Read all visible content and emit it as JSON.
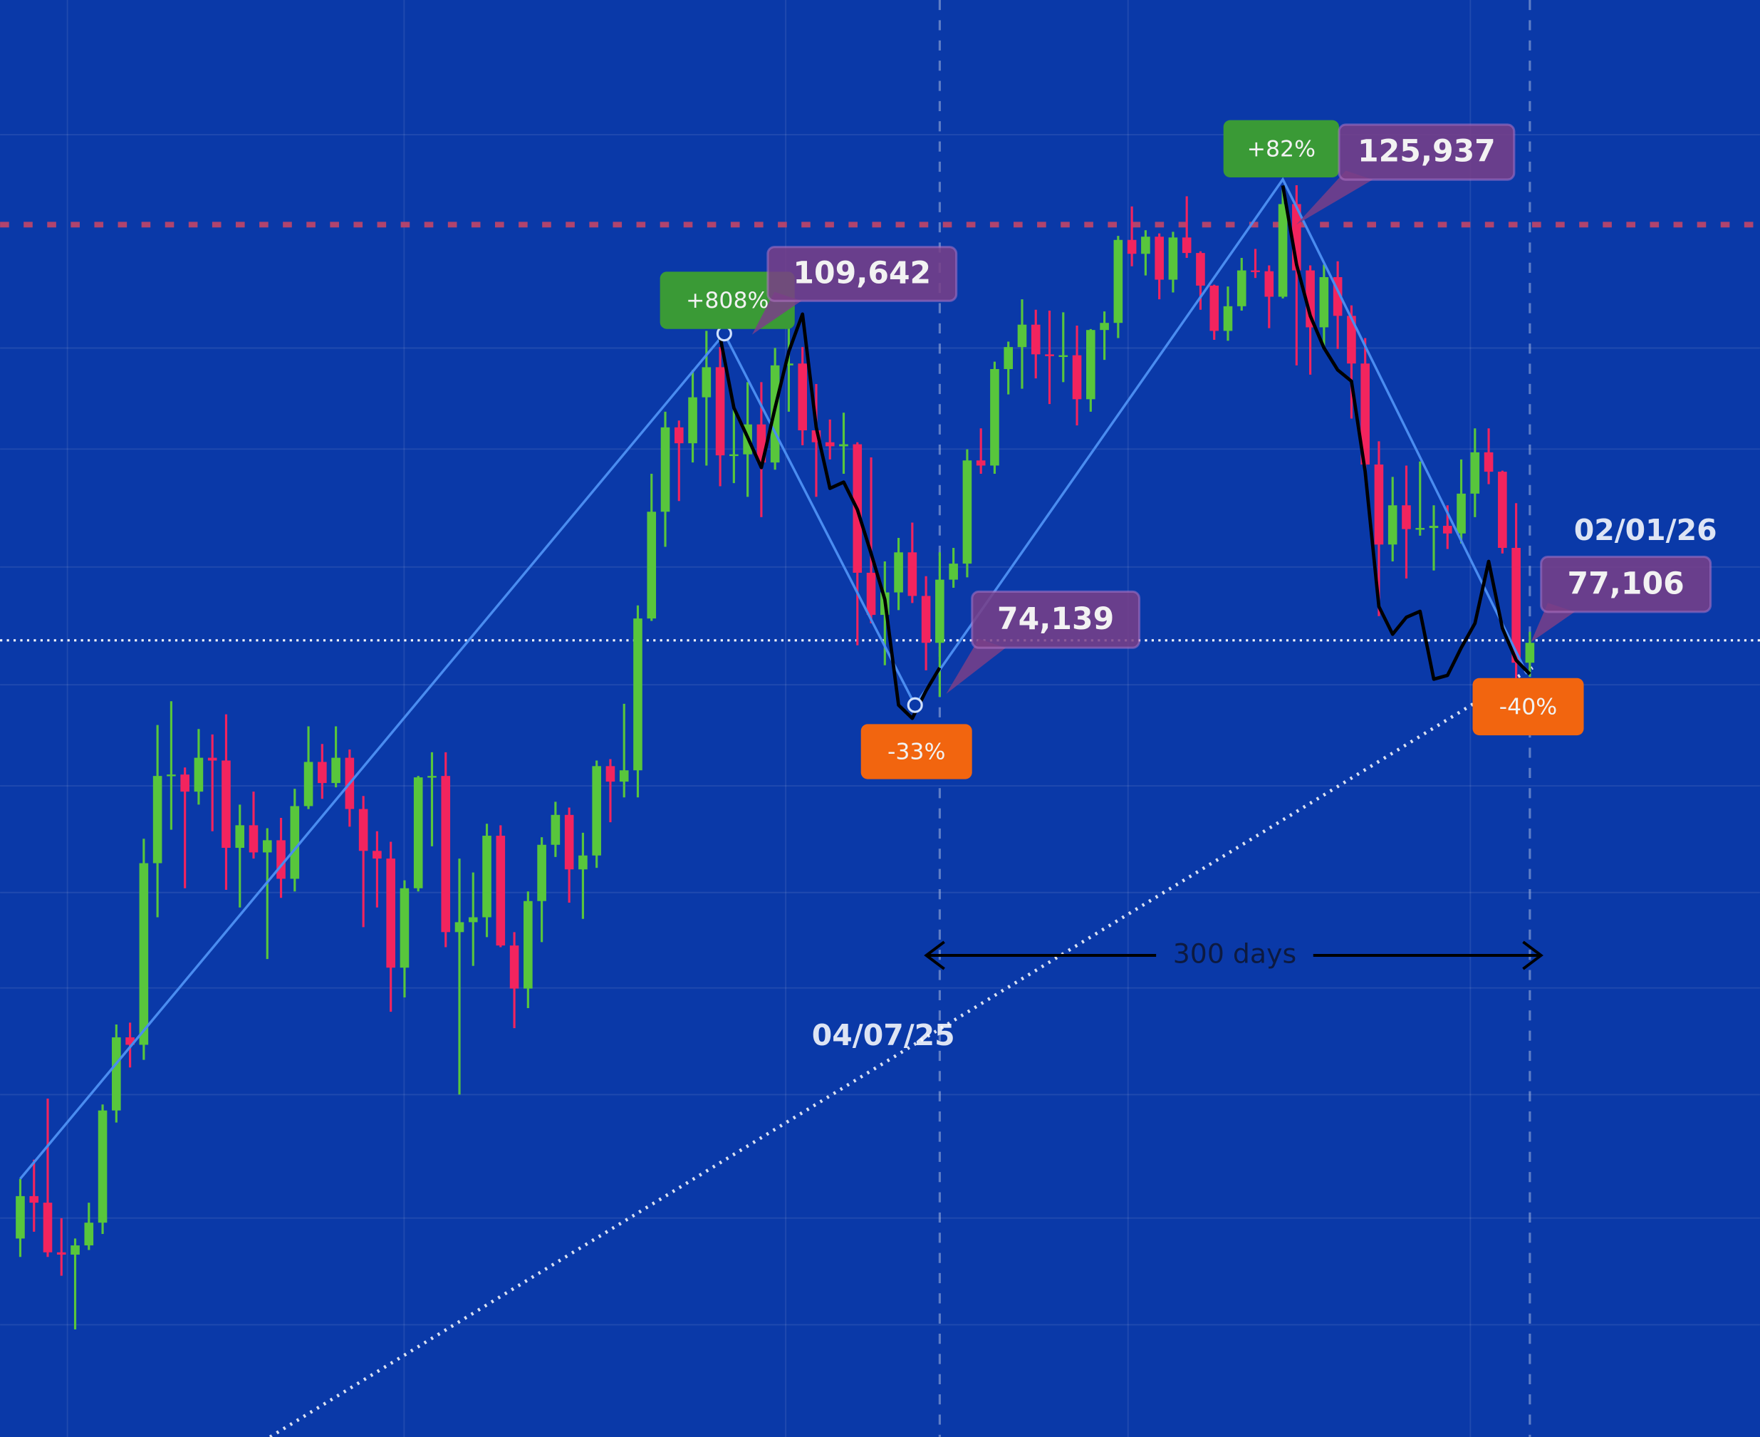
{
  "chart_data": {
    "type": "candlestick",
    "categories": [
      null,
      null,
      null,
      null,
      null,
      null,
      null,
      null,
      null,
      null,
      null,
      null,
      null,
      null,
      null,
      null,
      null,
      null,
      null,
      null,
      null,
      null,
      null,
      null,
      null,
      null,
      null,
      null,
      null,
      null,
      null,
      null,
      null,
      null,
      null,
      null,
      null,
      null,
      null,
      null,
      null,
      null,
      null,
      null,
      null,
      null,
      null,
      null,
      null,
      null,
      null,
      null,
      null,
      null,
      null,
      null,
      null,
      null,
      null,
      null,
      null,
      null,
      null,
      null,
      null,
      null,
      null,
      "04/07/25",
      null,
      null,
      null,
      null,
      null,
      null,
      null,
      null,
      null,
      null,
      null,
      null,
      null,
      null,
      null,
      null,
      null,
      null,
      null,
      null,
      null,
      null,
      null,
      null,
      null,
      null,
      null,
      null,
      null,
      null,
      null,
      null,
      null,
      null,
      null,
      null,
      null,
      null,
      null,
      null,
      null,
      null,
      "02/01/26"
    ],
    "open": [
      42300,
      44200,
      43900,
      41700,
      41600,
      42000,
      43000,
      48300,
      52100,
      51700,
      62400,
      68300,
      68400,
      67200,
      69600,
      69400,
      63400,
      64900,
      63100,
      63900,
      61400,
      66200,
      69300,
      67800,
      69600,
      66000,
      63200,
      62700,
      56000,
      60800,
      68200,
      68300,
      58100,
      58700,
      59000,
      64200,
      57300,
      54800,
      60000,
      63600,
      65600,
      62000,
      62900,
      69000,
      67900,
      68700,
      80400,
      89800,
      98000,
      96400,
      101100,
      104300,
      95200,
      95300,
      98300,
      94500,
      104500,
      104700,
      97700,
      96500,
      96100,
      96300,
      84300,
      80700,
      82600,
      86100,
      82300,
      78400,
      83700,
      85100,
      94700,
      94200,
      104100,
      106500,
      109000,
      105700,
      105500,
      105600,
      100900,
      108400,
      109200,
      119000,
      117300,
      119400,
      114200,
      119300,
      117400,
      113500,
      108300,
      111100,
      115300,
      115200,
      112200,
      123500,
      115300,
      108700,
      114500,
      110000,
      104700,
      94300,
      86800,
      90400,
      88200,
      88300,
      88500,
      87800,
      91500,
      95500,
      93600,
      86500,
      76800
    ],
    "high": [
      45000,
      45900,
      48900,
      43200,
      42300,
      43900,
      48600,
      52800,
      52900,
      64000,
      72000,
      73800,
      68900,
      71700,
      71300,
      72800,
      66300,
      67200,
      64700,
      65400,
      67400,
      71900,
      70600,
      71900,
      70200,
      66900,
      64500,
      63800,
      61300,
      68300,
      70000,
      70000,
      62700,
      61800,
      65000,
      64900,
      58100,
      60600,
      64100,
      66500,
      66100,
      64400,
      69400,
      69500,
      73600,
      81500,
      93400,
      99600,
      98700,
      104000,
      108300,
      106500,
      99900,
      102700,
      102700,
      106400,
      109642,
      106500,
      102500,
      98800,
      99500,
      96500,
      95000,
      85300,
      87400,
      88800,
      84000,
      86100,
      86500,
      95800,
      97900,
      104900,
      107100,
      111900,
      110700,
      110600,
      110400,
      108900,
      108500,
      110500,
      119500,
      123200,
      120200,
      119800,
      120000,
      124500,
      117600,
      113600,
      113400,
      116800,
      117900,
      115900,
      125700,
      125937,
      115900,
      116000,
      116400,
      111200,
      107500,
      96600,
      93100,
      94200,
      94600,
      90400,
      90400,
      94800,
      97900,
      97900,
      93700,
      90600,
      79300
    ],
    "low": [
      41500,
      42600,
      41500,
      40700,
      38500,
      41800,
      42500,
      47700,
      50500,
      50900,
      59000,
      64600,
      60800,
      66300,
      64500,
      60700,
      59600,
      62700,
      56500,
      60200,
      60600,
      66000,
      66700,
      67500,
      64800,
      58400,
      59600,
      53500,
      54300,
      60600,
      63500,
      57200,
      49100,
      56100,
      57800,
      57200,
      52600,
      53700,
      57500,
      62800,
      59900,
      58900,
      62100,
      65100,
      66800,
      66800,
      80200,
      86600,
      90800,
      94500,
      94200,
      92200,
      92500,
      91200,
      89300,
      93800,
      99600,
      96200,
      91200,
      94800,
      93400,
      78200,
      80000,
      76600,
      81100,
      81700,
      76200,
      74139,
      83000,
      83900,
      93400,
      93400,
      101400,
      102000,
      103100,
      100400,
      102700,
      98200,
      99600,
      105100,
      107500,
      115800,
      114700,
      111900,
      112700,
      116800,
      110700,
      107300,
      107200,
      110600,
      114400,
      108600,
      112000,
      104500,
      103500,
      106300,
      106300,
      98900,
      93000,
      80600,
      85300,
      83800,
      87600,
      84500,
      86400,
      86900,
      89300,
      92400,
      86000,
      74600,
      75700
    ],
    "close": [
      44200,
      43900,
      41700,
      41600,
      42000,
      43000,
      48300,
      52100,
      51700,
      62400,
      68300,
      68400,
      67200,
      69600,
      69400,
      63400,
      64900,
      63100,
      63900,
      61400,
      66200,
      69300,
      67800,
      69600,
      66000,
      63200,
      62700,
      56000,
      60800,
      68200,
      68300,
      58100,
      58700,
      59000,
      64200,
      57300,
      54800,
      60000,
      63600,
      65600,
      62000,
      62900,
      69000,
      67900,
      68700,
      80400,
      89800,
      98000,
      96400,
      101100,
      104300,
      95200,
      95300,
      98300,
      94500,
      104500,
      104700,
      97700,
      96500,
      96100,
      96300,
      84300,
      80700,
      82600,
      86100,
      82300,
      78400,
      83700,
      85100,
      94700,
      94200,
      104100,
      106500,
      109000,
      105700,
      105500,
      105600,
      100900,
      108400,
      109200,
      119000,
      117300,
      119400,
      114200,
      119300,
      117400,
      113500,
      108300,
      111100,
      115300,
      115200,
      112200,
      123500,
      115300,
      108700,
      114500,
      110000,
      104700,
      94300,
      86800,
      90400,
      88200,
      88300,
      88500,
      87800,
      91500,
      95500,
      93600,
      86500,
      76800,
      78400
    ],
    "up_color": "#58c63c",
    "down_color": "#f2245e",
    "ylim": [
      34440,
      152570
    ],
    "log": true,
    "line": {
      "color": "#000000",
      "values": [
        null,
        null,
        null,
        null,
        null,
        null,
        null,
        null,
        null,
        null,
        null,
        null,
        null,
        null,
        null,
        null,
        null,
        null,
        null,
        null,
        null,
        null,
        null,
        null,
        null,
        null,
        null,
        null,
        null,
        null,
        null,
        null,
        null,
        null,
        null,
        null,
        null,
        null,
        null,
        null,
        null,
        null,
        null,
        null,
        null,
        null,
        null,
        null,
        null,
        null,
        null,
        107600,
        100000,
        97000,
        94000,
        100000,
        106000,
        110200,
        98000,
        92000,
        92600,
        90000,
        86000,
        82000,
        73500,
        72500,
        74600,
        76400,
        null,
        null,
        null,
        null,
        null,
        null,
        null,
        null,
        null,
        null,
        null,
        null,
        null,
        null,
        null,
        null,
        null,
        null,
        null,
        null,
        null,
        null,
        null,
        null,
        125900,
        116000,
        110000,
        106400,
        104000,
        102800,
        93600,
        81400,
        79100,
        80500,
        81000,
        75500,
        75800,
        78000,
        80000,
        85300,
        79600,
        77000,
        75900
      ]
    },
    "zigzag": {
      "color": "#4a8cf0",
      "x": [
        0,
        51.3,
        65.2,
        92,
        109.8
      ],
      "values": [
        45000,
        108000,
        73500,
        126700,
        75900
      ]
    },
    "trendline": {
      "color": "#ffffff",
      "x": [
        18.2,
        110.2
      ],
      "values": [
        34440,
        76400
      ]
    },
    "reference_lines": [
      {
        "value": 120900,
        "color": "#b0446e",
        "style": "dashed"
      },
      {
        "value": 78600,
        "color": "#ffffff",
        "style": "dotted"
      }
    ],
    "annotations": [
      {
        "text": "+808%",
        "color": "#3a9a36"
      },
      {
        "text": "109,642",
        "color": "#7a3f88"
      },
      {
        "text": "-33%",
        "color": "#f2650f"
      },
      {
        "text": "74,139",
        "color": "#7a3f88"
      },
      {
        "text": "+82%",
        "color": "#3a9a36"
      },
      {
        "text": "125,937",
        "color": "#7a3f88"
      },
      {
        "text": "-40%",
        "color": "#f2650f"
      },
      {
        "text": "77,106",
        "color": "#7a3f88"
      }
    ],
    "span_label": "300 days"
  }
}
